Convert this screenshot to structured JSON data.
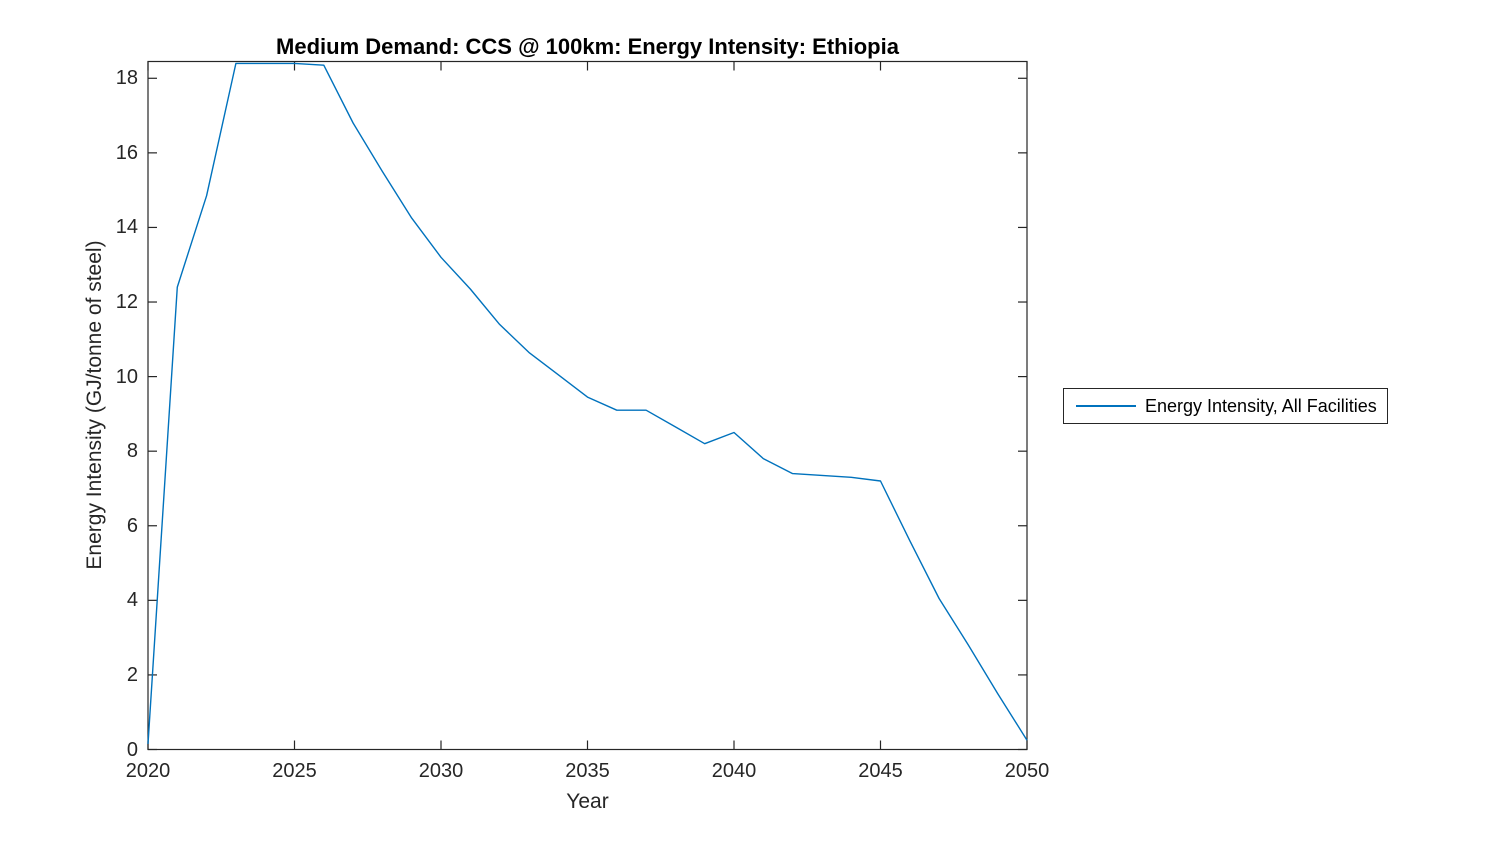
{
  "figure": {
    "background": "#ffffff",
    "axis_color": "#262626",
    "title_color": "#000000"
  },
  "chart_data": {
    "type": "line",
    "title": "Medium Demand: CCS @ 100km: Energy Intensity: Ethiopia",
    "xlabel": "Year",
    "ylabel": "Energy Intensity (GJ/tonne of steel)",
    "xlim": [
      2020,
      2050
    ],
    "ylim": [
      0,
      18.45
    ],
    "x_ticks": [
      2020,
      2025,
      2030,
      2035,
      2040,
      2045,
      2050
    ],
    "y_ticks": [
      0,
      2,
      4,
      6,
      8,
      10,
      12,
      14,
      16,
      18
    ],
    "grid": false,
    "line_color": "#0072BD",
    "legend": {
      "position": "outside-right",
      "entries": [
        "Energy Intensity, All Facilities"
      ]
    },
    "series": [
      {
        "name": "Energy Intensity, All Facilities",
        "x": [
          2020,
          2021,
          2022,
          2023,
          2024,
          2025,
          2026,
          2027,
          2028,
          2029,
          2030,
          2031,
          2032,
          2033,
          2034,
          2035,
          2036,
          2037,
          2038,
          2039,
          2040,
          2041,
          2042,
          2043,
          2044,
          2045,
          2046,
          2047,
          2048,
          2049,
          2050
        ],
        "y": [
          0.15,
          12.4,
          14.85,
          18.4,
          18.4,
          18.4,
          18.35,
          16.8,
          15.5,
          14.25,
          13.2,
          12.35,
          11.4,
          10.65,
          10.05,
          9.45,
          9.1,
          9.1,
          8.65,
          8.2,
          8.5,
          7.8,
          7.4,
          7.35,
          7.3,
          7.2,
          5.6,
          4.05,
          2.8,
          1.5,
          0.25
        ]
      }
    ]
  }
}
